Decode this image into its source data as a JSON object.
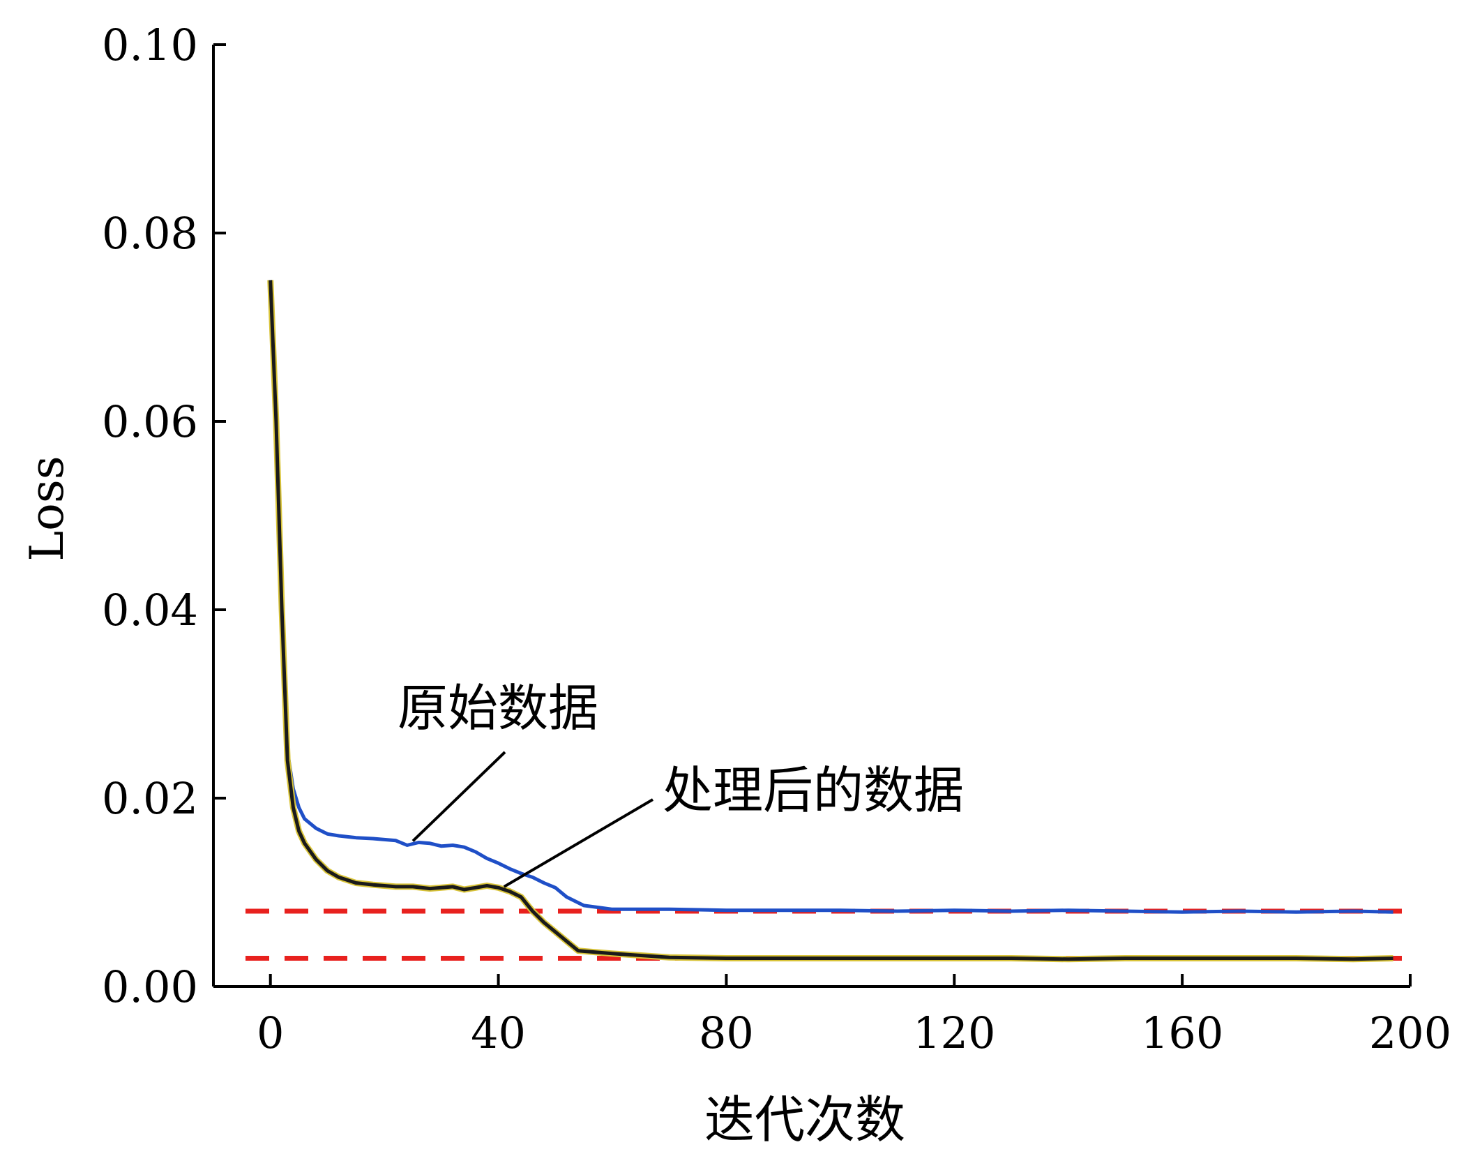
{
  "chart_data": {
    "type": "line",
    "xlabel": "迭代次数",
    "ylabel": "Loss",
    "xlim": [
      -10,
      200
    ],
    "ylim": [
      0,
      0.1
    ],
    "x_ticks": [
      0,
      40,
      80,
      120,
      160,
      200
    ],
    "x_tick_labels": [
      "0",
      "40",
      "80",
      "120",
      "160",
      "200"
    ],
    "y_ticks": [
      0,
      0.02,
      0.04,
      0.06,
      0.08,
      0.1
    ],
    "y_tick_labels": [
      "0.00",
      "0.02",
      "0.04",
      "0.06",
      "0.08",
      "0.10"
    ],
    "grid": false,
    "series": [
      {
        "name": "原始数据",
        "color": "#1f4fc7",
        "x": [
          0,
          1,
          2,
          3,
          4,
          5,
          6,
          8,
          10,
          12,
          15,
          18,
          20,
          22,
          24,
          26,
          28,
          30,
          32,
          34,
          36,
          38,
          40,
          42,
          44,
          46,
          48,
          50,
          52,
          55,
          60,
          70,
          80,
          90,
          100,
          110,
          120,
          130,
          140,
          150,
          160,
          170,
          180,
          190,
          197
        ],
        "y": [
          0.075,
          0.06,
          0.04,
          0.025,
          0.021,
          0.019,
          0.0178,
          0.0168,
          0.0162,
          0.016,
          0.0158,
          0.0157,
          0.0156,
          0.0155,
          0.015,
          0.0153,
          0.0152,
          0.0149,
          0.015,
          0.0148,
          0.0143,
          0.0136,
          0.0131,
          0.0125,
          0.012,
          0.0116,
          0.011,
          0.0105,
          0.0095,
          0.0086,
          0.0082,
          0.0082,
          0.0081,
          0.0081,
          0.0081,
          0.008,
          0.0081,
          0.008,
          0.0081,
          0.008,
          0.0079,
          0.008,
          0.0079,
          0.008,
          0.0079
        ]
      },
      {
        "name": "处理后的数据",
        "color": "#1a1a1a",
        "x": [
          0,
          1,
          2,
          3,
          4,
          5,
          6,
          8,
          10,
          12,
          15,
          18,
          20,
          22,
          25,
          28,
          30,
          32,
          34,
          36,
          38,
          40,
          42,
          44,
          46,
          48,
          50,
          52,
          54,
          60,
          65,
          70,
          80,
          90,
          100,
          110,
          120,
          130,
          140,
          150,
          160,
          170,
          180,
          190,
          197
        ],
        "y": [
          0.075,
          0.06,
          0.04,
          0.024,
          0.019,
          0.0165,
          0.0152,
          0.0135,
          0.0123,
          0.0116,
          0.011,
          0.0108,
          0.0107,
          0.0106,
          0.0106,
          0.0104,
          0.0105,
          0.0106,
          0.0103,
          0.0105,
          0.0107,
          0.0105,
          0.0101,
          0.0095,
          0.008,
          0.0068,
          0.0058,
          0.0048,
          0.0038,
          0.0035,
          0.0033,
          0.0031,
          0.003,
          0.003,
          0.003,
          0.003,
          0.003,
          0.003,
          0.0029,
          0.003,
          0.003,
          0.003,
          0.003,
          0.0029,
          0.003
        ]
      }
    ],
    "reference_lines": [
      {
        "y": 0.008,
        "color": "#e8211e",
        "style": "dashed"
      },
      {
        "y": 0.003,
        "color": "#e8211e",
        "style": "dashed"
      }
    ],
    "annotations": [
      {
        "text": "原始数据",
        "target_series": 0,
        "target_x": 25
      },
      {
        "text": "处理后的数据",
        "target_series": 1,
        "target_x": 41
      }
    ]
  }
}
